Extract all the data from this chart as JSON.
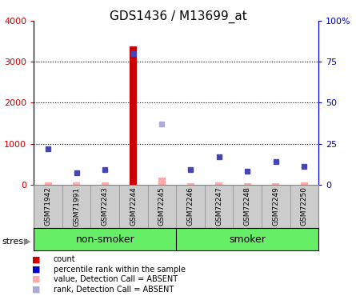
{
  "title": "GDS1436 / M13699_at",
  "samples": [
    "GSM71942",
    "GSM71991",
    "GSM72243",
    "GSM72244",
    "GSM72245",
    "GSM72246",
    "GSM72247",
    "GSM72248",
    "GSM72249",
    "GSM72250"
  ],
  "count_values": [
    50,
    55,
    50,
    3370,
    175,
    40,
    60,
    35,
    30,
    45
  ],
  "count_absent": [
    true,
    true,
    true,
    false,
    true,
    true,
    true,
    true,
    true,
    true
  ],
  "rank_pct_values": [
    22,
    7,
    9,
    80,
    37,
    9,
    17,
    8,
    14,
    11
  ],
  "rank_absent": [
    false,
    false,
    false,
    false,
    true,
    false,
    false,
    false,
    false,
    false
  ],
  "ylim_left": [
    0,
    4000
  ],
  "ylim_right": [
    0,
    100
  ],
  "yticks_left": [
    0,
    1000,
    2000,
    3000,
    4000
  ],
  "ytick_labels_left": [
    "0",
    "1000",
    "2000",
    "3000",
    "4000"
  ],
  "yticks_right": [
    0,
    25,
    50,
    75,
    100
  ],
  "ytick_labels_right": [
    "0",
    "25",
    "50",
    "75",
    "100%"
  ],
  "non_smoker_count": 5,
  "smoker_count": 5,
  "non_smoker_label": "non-smoker",
  "smoker_label": "smoker",
  "group_color": "#66ee66",
  "sample_bg_color": "#cccccc",
  "stress_label": "stress",
  "count_color": "#cc0000",
  "count_absent_color": "#ffaaaa",
  "rank_color": "#4444bb",
  "rank_absent_color": "#aaaadd",
  "legend_items": [
    {
      "label": "count",
      "color": "#cc0000"
    },
    {
      "label": "percentile rank within the sample",
      "color": "#0000cc"
    },
    {
      "label": "value, Detection Call = ABSENT",
      "color": "#ffaaaa"
    },
    {
      "label": "rank, Detection Call = ABSENT",
      "color": "#aaaadd"
    }
  ],
  "background_color": "#ffffff"
}
